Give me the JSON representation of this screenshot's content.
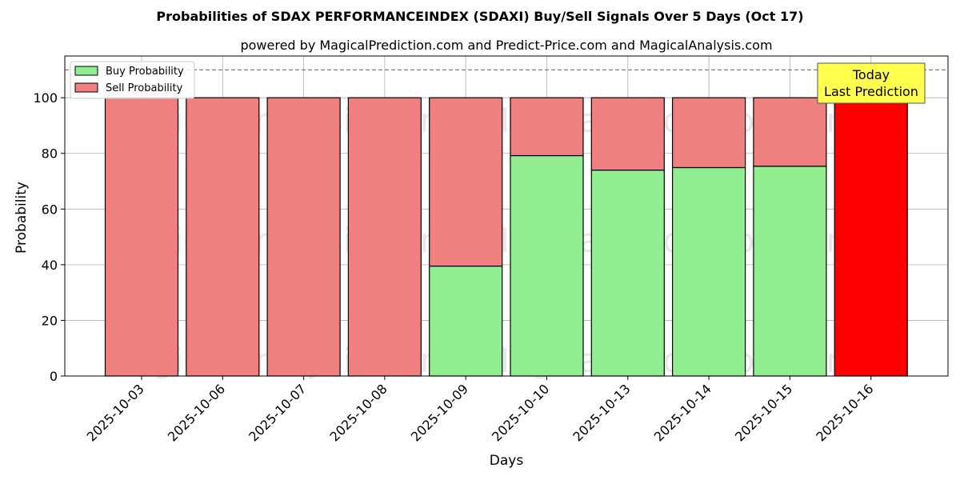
{
  "chart_data": {
    "type": "bar",
    "title": "Probabilities of SDAX PERFORMANCEINDEX (SDAXI) Buy/Sell Signals Over 5 Days (Oct 17)",
    "subtitle": "powered by MagicalPrediction.com and Predict-Price.com and MagicalAnalysis.com",
    "xlabel": "Days",
    "ylabel": "Probability",
    "ylim": [
      0,
      115
    ],
    "yticks": [
      0,
      20,
      40,
      60,
      80,
      100
    ],
    "reference_line": 110,
    "grid": true,
    "legend_position": "top-left",
    "categories": [
      "2025-10-03",
      "2025-10-06",
      "2025-10-07",
      "2025-10-08",
      "2025-10-09",
      "2025-10-10",
      "2025-10-13",
      "2025-10-14",
      "2025-10-15",
      "2025-10-16"
    ],
    "series": [
      {
        "name": "Buy Probability",
        "color": "#90ee90",
        "values": [
          0,
          0,
          0,
          0,
          39.5,
          79.2,
          74,
          74.9,
          75.4,
          0
        ]
      },
      {
        "name": "Sell Probability",
        "color": "#f08080",
        "values": [
          100,
          100,
          100,
          100,
          60.5,
          20.8,
          26,
          25.1,
          24.6,
          100
        ]
      }
    ],
    "highlight": {
      "index": 9,
      "color": "#ff0000"
    },
    "annotation": {
      "lines": [
        "Today",
        "Last Prediction"
      ],
      "bg_color": "#ffff4d"
    },
    "watermarks": [
      "MagicalAnalysis.com",
      "MagicalPrediction.com"
    ]
  }
}
